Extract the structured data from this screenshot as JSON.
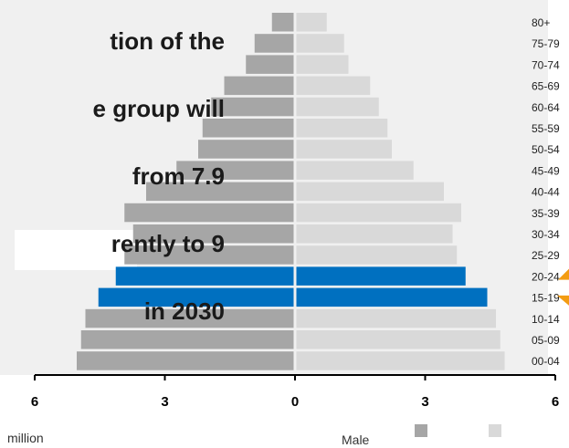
{
  "callout": {
    "lines": [
      "tion of the",
      "e group will",
      "from 7.9",
      "rently to 9",
      "in 2030"
    ]
  },
  "legend": {
    "left_label": "million",
    "male_label": "Male"
  },
  "colors": {
    "female": "#a6a6a6",
    "male": "#d9d9d9",
    "highlight": "#0070c0",
    "accent": "#f39c12",
    "axis": "#000000",
    "background_panel": "#f0f0f0"
  },
  "chart_data": {
    "type": "bar",
    "orientation": "horizontal",
    "categories": [
      "80+",
      "75-79",
      "70-74",
      "65-69",
      "60-64",
      "55-59",
      "50-54",
      "45-49",
      "40-44",
      "35-39",
      "30-34",
      "25-29",
      "20-24",
      "15-19",
      "10-14",
      "05-09",
      "00-04"
    ],
    "series": [
      {
        "name": "",
        "side": "left",
        "values": [
          0.5,
          0.9,
          1.1,
          1.6,
          1.9,
          2.1,
          2.2,
          2.7,
          3.4,
          3.9,
          3.7,
          3.9,
          4.1,
          4.5,
          4.8,
          4.9,
          5.0
        ]
      },
      {
        "name": "Male",
        "side": "right",
        "values": [
          0.7,
          1.1,
          1.2,
          1.7,
          1.9,
          2.1,
          2.2,
          2.7,
          3.4,
          3.8,
          3.6,
          3.7,
          3.9,
          4.4,
          4.6,
          4.7,
          4.8
        ]
      }
    ],
    "highlight_categories": [
      "20-24",
      "15-19"
    ],
    "x_ticks": [
      6,
      3,
      0,
      3,
      6
    ],
    "xlim": [
      -6,
      6
    ],
    "xlabel": "million",
    "title": ""
  }
}
